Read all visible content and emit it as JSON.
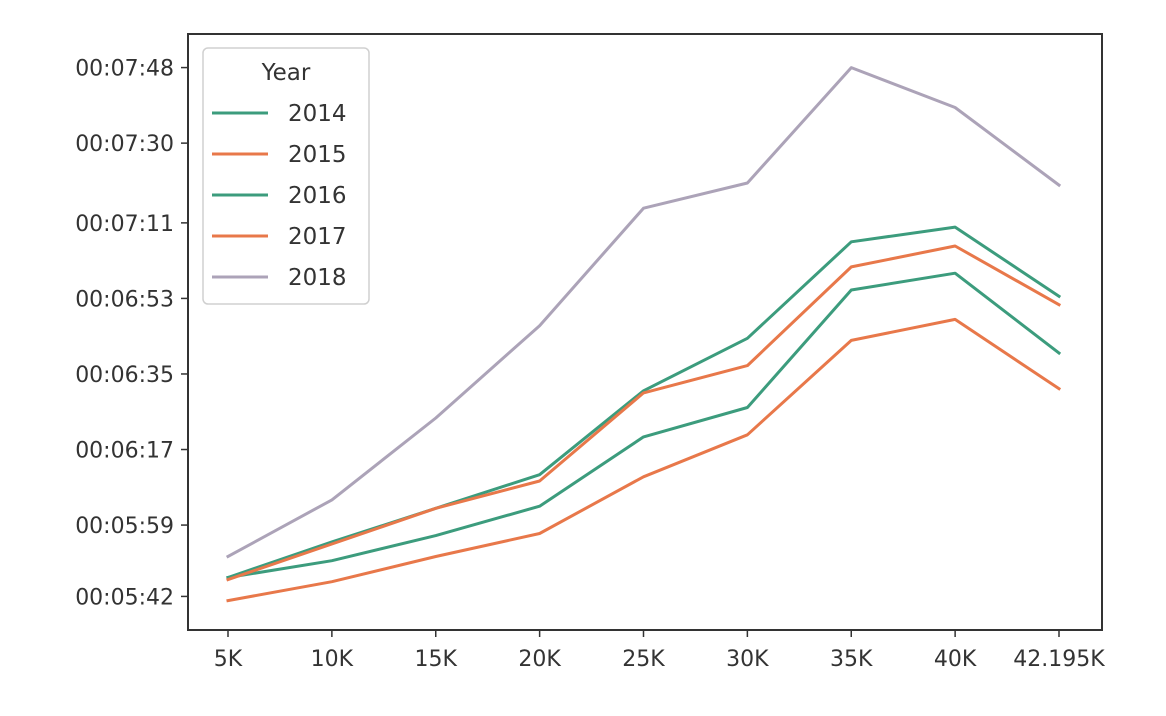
{
  "chart_data": {
    "type": "line",
    "categories": [
      "5K",
      "10K",
      "15K",
      "20K",
      "25K",
      "30K",
      "35K",
      "40K",
      "42.195K"
    ],
    "y_tick_labels": [
      "00:05:42",
      "00:05:59",
      "00:06:17",
      "00:06:35",
      "00:06:53",
      "00:07:11",
      "00:07:30",
      "00:07:48"
    ],
    "y_tick_seconds": [
      342,
      359,
      377,
      395,
      413,
      431,
      450,
      468
    ],
    "ylim_seconds": [
      334,
      476
    ],
    "ylim": [
      "00:05:34",
      "00:07:56"
    ],
    "legend": {
      "title": "Year",
      "placement": "upper left"
    },
    "grid": false,
    "series": [
      {
        "name": "2014",
        "color": "#3c9c7d",
        "values_seconds": [
          346.5,
          350.5,
          356.5,
          363.5,
          380,
          387,
          415,
          419,
          400
        ],
        "values": [
          "00:05:46.5",
          "00:05:50.5",
          "00:05:56.5",
          "00:06:03.5",
          "00:06:20",
          "00:06:27",
          "00:06:55",
          "00:06:59",
          "00:06:40"
        ]
      },
      {
        "name": "2015",
        "color": "#e8784a",
        "values_seconds": [
          341,
          345.5,
          351.5,
          357,
          370.5,
          380.5,
          403,
          408,
          391.5
        ],
        "values": [
          "00:05:41",
          "00:05:45.5",
          "00:05:51.5",
          "00:05:57",
          "00:06:10.5",
          "00:06:20.5",
          "00:06:43",
          "00:06:48",
          "00:06:31.5"
        ]
      },
      {
        "name": "2016",
        "color": "#3c9c7d",
        "values_seconds": [
          346.5,
          355,
          363,
          371,
          391,
          403.5,
          426.5,
          430,
          413.5
        ],
        "values": [
          "00:05:46.5",
          "00:05:55",
          "00:06:03",
          "00:06:11",
          "00:06:31",
          "00:06:43.5",
          "00:07:06.5",
          "00:07:10",
          "00:06:53.5"
        ]
      },
      {
        "name": "2017",
        "color": "#e8784a",
        "values_seconds": [
          346,
          354.5,
          363,
          369.5,
          390.5,
          397,
          420.5,
          425.5,
          411.5
        ],
        "values": [
          "00:05:46",
          "00:05:54.5",
          "00:06:03",
          "00:06:09.5",
          "00:06:30.5",
          "00:06:37",
          "00:07:00.5",
          "00:07:05.5",
          "00:06:51.5"
        ]
      },
      {
        "name": "2018",
        "color": "#aca3b8",
        "values_seconds": [
          351.5,
          365,
          384.5,
          406.5,
          434.5,
          440.5,
          468,
          458.5,
          440
        ]
      }
    ]
  }
}
